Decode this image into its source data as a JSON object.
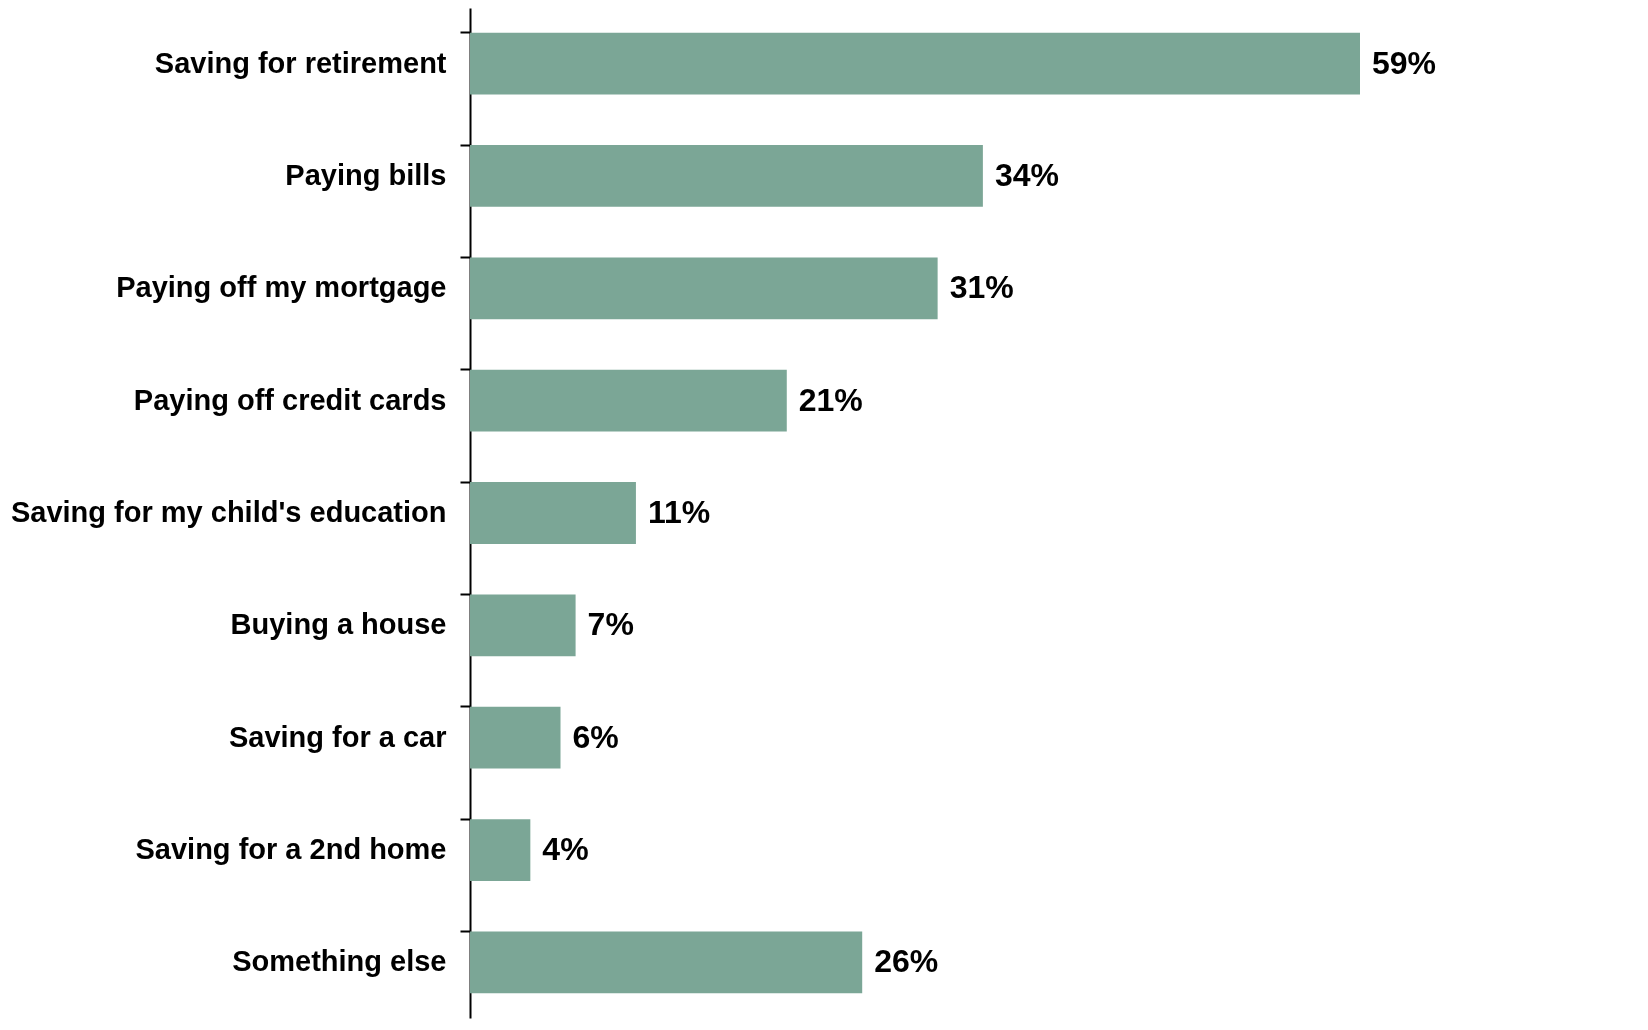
{
  "chart_data": {
    "type": "bar",
    "orientation": "horizontal",
    "categories": [
      "Saving for retirement",
      "Paying bills",
      "Paying off my mortgage",
      "Paying off credit cards",
      "Saving for my child's education",
      "Buying a house",
      "Saving for a car",
      "Saving for a 2nd home",
      "Something else"
    ],
    "values": [
      59,
      34,
      31,
      21,
      11,
      7,
      6,
      4,
      26
    ],
    "value_labels": [
      "59%",
      "34%",
      "31%",
      "21%",
      "11%",
      "7%",
      "6%",
      "4%",
      "26%"
    ],
    "color": "#7ba696"
  }
}
